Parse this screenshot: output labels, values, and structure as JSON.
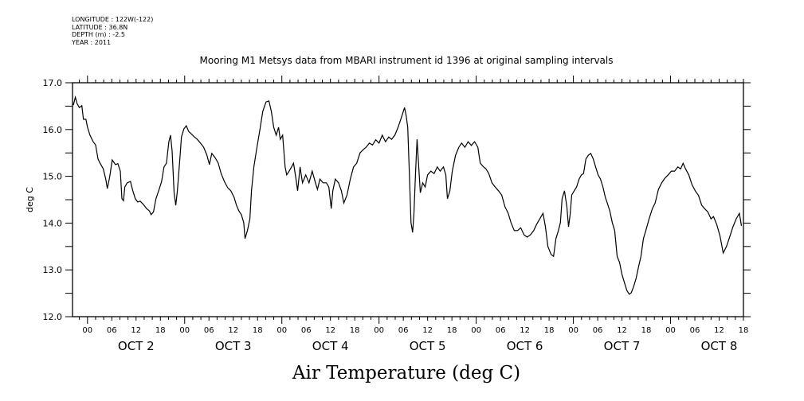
{
  "header": {
    "longitude": "LONGITUDE : 122W(-122)",
    "latitude": "LATITUDE : 36.8N",
    "depth": "DEPTH (m) : -2.5",
    "year": "YEAR : 2011"
  },
  "chart_data": {
    "type": "line",
    "title": "Mooring M1 Metsys data from MBARI instrument id 1396 at original sampling intervals",
    "xlabel": "Air Temperature (deg C)",
    "ylabel": "deg C",
    "x_units": "hours since OCT 2 00:00",
    "xlim": [
      -3.7,
      162
    ],
    "ylim": [
      12.0,
      17.0
    ],
    "y_ticks": [
      12.0,
      13.0,
      14.0,
      15.0,
      16.0,
      17.0
    ],
    "y_tick_labels": [
      "12.0",
      "13.0",
      "14.0",
      "15.0",
      "16.0",
      "17.0"
    ],
    "x_tick_start": 0,
    "x_tick_step": 6,
    "x_tick_labels": [
      "00",
      "06",
      "12",
      "18",
      "00",
      "06",
      "12",
      "18",
      "00",
      "06",
      "12",
      "18",
      "00",
      "06",
      "12",
      "18",
      "00",
      "06",
      "12",
      "18",
      "00",
      "06",
      "12",
      "18",
      "00",
      "06",
      "12",
      "18"
    ],
    "day_labels": [
      "OCT  2",
      "OCT  3",
      "OCT  4",
      "OCT  5",
      "OCT  6",
      "OCT  7",
      "OCT  8"
    ],
    "line_color": "#000000",
    "grid": false,
    "series": [
      {
        "name": "Air Temperature",
        "x": [
          -3.5,
          -3.0,
          -2.6,
          -2.0,
          -1.4,
          -1.0,
          -0.4,
          0.0,
          0.6,
          1.4,
          2.0,
          2.6,
          3.1,
          3.9,
          4.5,
          4.9,
          5.5,
          6.1,
          6.9,
          7.5,
          8.1,
          8.5,
          8.9,
          9.2,
          9.8,
          10.6,
          11.2,
          11.8,
          12.4,
          13.0,
          13.8,
          14.6,
          15.3,
          15.7,
          16.3,
          16.9,
          17.7,
          18.3,
          18.9,
          19.5,
          20.1,
          20.5,
          20.9,
          21.4,
          21.8,
          22.2,
          22.8,
          23.2,
          23.8,
          24.4,
          25.0,
          25.6,
          26.4,
          27.1,
          27.9,
          28.7,
          29.5,
          30.1,
          30.7,
          31.5,
          32.3,
          33.0,
          33.8,
          34.6,
          35.4,
          36.2,
          36.8,
          37.4,
          38.0,
          38.6,
          38.9,
          39.5,
          40.1,
          40.5,
          41.1,
          41.7,
          42.5,
          43.3,
          44.1,
          44.8,
          45.4,
          46.0,
          46.6,
          47.2,
          47.6,
          48.2,
          48.8,
          49.2,
          49.8,
          50.4,
          50.9,
          51.5,
          51.9,
          52.5,
          53.1,
          53.9,
          54.7,
          55.5,
          56.3,
          56.8,
          57.4,
          58.2,
          59.0,
          59.6,
          60.2,
          60.6,
          61.2,
          62.0,
          62.7,
          63.3,
          64.1,
          64.9,
          65.7,
          66.5,
          67.3,
          68.1,
          68.8,
          69.6,
          70.4,
          71.2,
          72.0,
          72.8,
          73.6,
          74.4,
          75.1,
          75.9,
          76.7,
          77.5,
          78.3,
          78.7,
          79.1,
          79.5,
          79.9,
          80.3,
          80.6,
          81.0,
          81.4,
          82.2,
          82.8,
          83.4,
          84.0,
          84.8,
          85.6,
          86.4,
          87.1,
          87.9,
          88.5,
          88.9,
          89.5,
          90.1,
          90.9,
          91.7,
          92.4,
          93.2,
          94.0,
          94.8,
          95.6,
          96.4,
          97.0,
          97.8,
          98.4,
          99.1,
          99.9,
          100.7,
          101.5,
          102.3,
          103.1,
          103.9,
          104.6,
          105.4,
          106.2,
          107.0,
          107.8,
          108.6,
          109.4,
          110.2,
          110.9,
          111.7,
          112.5,
          113.1,
          113.7,
          114.5,
          115.1,
          115.7,
          116.3,
          116.8,
          117.2,
          117.8,
          118.4,
          118.8,
          119.2,
          119.6,
          120.2,
          120.8,
          121.4,
          122.0,
          122.5,
          123.1,
          123.7,
          124.3,
          124.9,
          125.5,
          126.1,
          126.7,
          127.3,
          127.9,
          128.4,
          129.0,
          129.6,
          130.2,
          130.8,
          131.4,
          132.0,
          132.6,
          133.2,
          133.8,
          134.3,
          134.9,
          135.5,
          136.1,
          136.7,
          137.3,
          137.9,
          138.7,
          139.5,
          140.2,
          141.0,
          141.8,
          142.6,
          143.4,
          144.2,
          145.0,
          145.8,
          146.5,
          147.1,
          147.7,
          148.5,
          149.3,
          150.1,
          150.9,
          151.7,
          152.4,
          153.2,
          154.0,
          154.6,
          155.4,
          156.2,
          157.0,
          157.8,
          158.6,
          159.4,
          160.2,
          161.0,
          161.5
        ],
        "y": [
          16.52,
          16.69,
          16.56,
          16.47,
          16.51,
          16.22,
          16.22,
          16.05,
          15.88,
          15.74,
          15.67,
          15.37,
          15.28,
          15.16,
          14.94,
          14.74,
          14.99,
          15.35,
          15.25,
          15.27,
          15.11,
          14.52,
          14.48,
          14.77,
          14.86,
          14.89,
          14.69,
          14.52,
          14.45,
          14.47,
          14.4,
          14.31,
          14.26,
          14.18,
          14.24,
          14.52,
          14.72,
          14.89,
          15.2,
          15.28,
          15.74,
          15.88,
          15.54,
          14.65,
          14.38,
          14.69,
          15.37,
          15.84,
          16.01,
          16.08,
          15.96,
          15.91,
          15.84,
          15.79,
          15.71,
          15.62,
          15.45,
          15.25,
          15.49,
          15.4,
          15.28,
          15.06,
          14.89,
          14.76,
          14.69,
          14.55,
          14.38,
          14.26,
          14.18,
          14.01,
          13.67,
          13.84,
          14.09,
          14.69,
          15.2,
          15.54,
          15.96,
          16.39,
          16.59,
          16.61,
          16.39,
          16.05,
          15.88,
          16.05,
          15.79,
          15.88,
          15.2,
          15.03,
          15.11,
          15.2,
          15.28,
          14.94,
          14.69,
          15.2,
          14.86,
          15.03,
          14.86,
          15.11,
          14.86,
          14.72,
          14.94,
          14.86,
          14.86,
          14.77,
          14.31,
          14.69,
          14.94,
          14.86,
          14.69,
          14.43,
          14.6,
          14.94,
          15.2,
          15.28,
          15.5,
          15.57,
          15.62,
          15.71,
          15.67,
          15.78,
          15.71,
          15.88,
          15.74,
          15.84,
          15.79,
          15.88,
          16.05,
          16.25,
          16.47,
          16.3,
          16.05,
          15.03,
          14.01,
          13.8,
          14.18,
          15.03,
          15.79,
          14.65,
          14.86,
          14.77,
          15.03,
          15.11,
          15.06,
          15.2,
          15.11,
          15.2,
          15.03,
          14.52,
          14.69,
          15.11,
          15.45,
          15.62,
          15.71,
          15.62,
          15.74,
          15.66,
          15.74,
          15.62,
          15.28,
          15.2,
          15.16,
          15.06,
          14.86,
          14.77,
          14.69,
          14.6,
          14.35,
          14.21,
          14.01,
          13.84,
          13.84,
          13.9,
          13.75,
          13.7,
          13.75,
          13.84,
          13.97,
          14.09,
          14.21,
          13.92,
          13.5,
          13.33,
          13.29,
          13.67,
          13.84,
          14.01,
          14.52,
          14.69,
          14.35,
          13.92,
          14.18,
          14.6,
          14.69,
          14.77,
          14.94,
          15.03,
          15.06,
          15.37,
          15.45,
          15.49,
          15.37,
          15.2,
          15.03,
          14.94,
          14.77,
          14.55,
          14.42,
          14.26,
          14.01,
          13.84,
          13.29,
          13.16,
          12.9,
          12.73,
          12.56,
          12.48,
          12.51,
          12.65,
          12.82,
          13.07,
          13.29,
          13.67,
          13.84,
          14.09,
          14.31,
          14.43,
          14.72,
          14.86,
          14.96,
          15.03,
          15.11,
          15.11,
          15.2,
          15.16,
          15.28,
          15.16,
          15.03,
          14.82,
          14.69,
          14.59,
          14.38,
          14.31,
          14.24,
          14.09,
          14.14,
          13.97,
          13.73,
          13.36,
          13.5,
          13.7,
          13.92,
          14.09,
          14.21,
          13.94
        ]
      }
    ]
  }
}
